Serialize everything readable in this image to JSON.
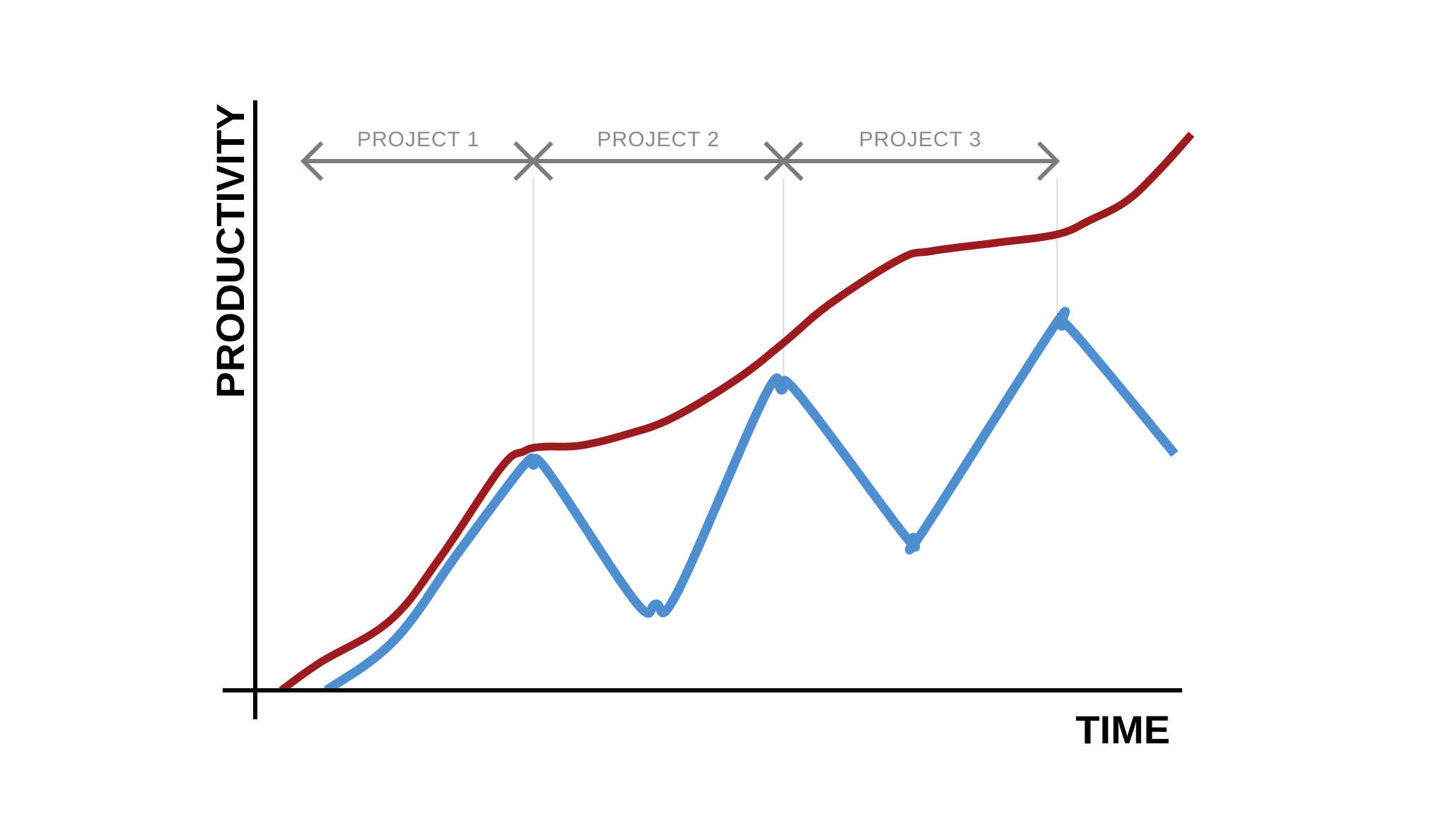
{
  "chart_data": {
    "type": "line",
    "xlabel": "TIME",
    "ylabel": "PRODUCTIVITY",
    "xlim": [
      0,
      100
    ],
    "ylim": [
      0,
      100
    ],
    "grid": false,
    "legend": "none",
    "phases": [
      {
        "label": "PROJECT 1",
        "start": 5.2,
        "end": 30.0
      },
      {
        "label": "PROJECT 2",
        "start": 30.0,
        "end": 57.0
      },
      {
        "label": "PROJECT 3",
        "start": 57.0,
        "end": 86.5
      }
    ],
    "series": [
      {
        "color": "#9b1b1e",
        "x": [
          2.8,
          7.0,
          14.5,
          20.0,
          26.5,
          29.0,
          31.0,
          35.0,
          40.0,
          45.0,
          52.0,
          57.0,
          62.0,
          69.5,
          73.0,
          80.0,
          86.5,
          90.0,
          94.0,
          97.5,
          101.0
        ],
        "y": [
          0.0,
          5.0,
          12.5,
          24.0,
          40.0,
          43.0,
          43.8,
          44.0,
          46.0,
          49.0,
          56.0,
          62.5,
          69.5,
          77.5,
          79.0,
          80.5,
          82.0,
          84.5,
          88.0,
          93.5,
          100.0
        ]
      },
      {
        "color": "#4f8fcf",
        "x": [
          7.7,
          15.0,
          22.0,
          29.0,
          30.0,
          31.5,
          41.0,
          43.2,
          45.5,
          55.0,
          56.8,
          58.5,
          70.0,
          71.0,
          72.0,
          86.0,
          87.0,
          88.5,
          99.2
        ],
        "y": [
          0.0,
          9.0,
          25.0,
          40.5,
          40.5,
          39.5,
          16.0,
          15.5,
          17.5,
          53.0,
          54.0,
          53.5,
          28.0,
          27.5,
          28.5,
          65.0,
          65.5,
          64.0,
          42.5
        ]
      }
    ]
  }
}
